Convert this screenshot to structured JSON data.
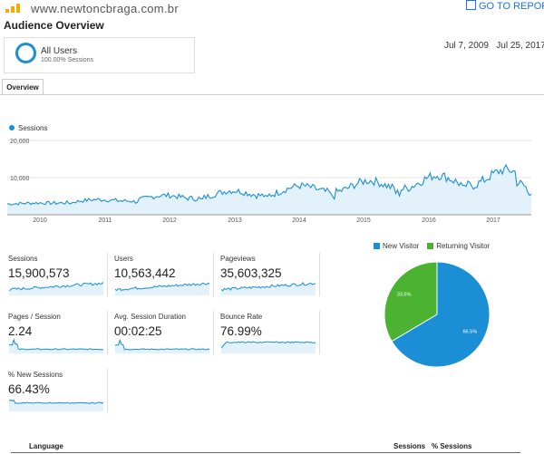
{
  "header": {
    "site": "www.newtoncbraga.com.br",
    "goto_report": "GO TO REPORT",
    "title": "Audience Overview"
  },
  "segment": {
    "name": "All Users",
    "sub": "100.00% Sessions"
  },
  "date_range": {
    "start": "Jul 7, 2009",
    "end": "Jul 25, 2017"
  },
  "tabs": [
    {
      "label": "Overview"
    }
  ],
  "colors": {
    "accent": "#1a8fd6",
    "returning": "#4cb332",
    "fill": "#e3f1fa"
  },
  "sessions_chart": {
    "legend": "Sessions",
    "y_ticks": [
      "20,000",
      "10,000"
    ],
    "x_ticks": [
      "2010",
      "2011",
      "2012",
      "2013",
      "2014",
      "2015",
      "2016",
      "2017"
    ]
  },
  "metrics": [
    {
      "label": "Sessions",
      "value": "15,900,573"
    },
    {
      "label": "Users",
      "value": "10,563,442"
    },
    {
      "label": "Pageviews",
      "value": "35,603,325"
    },
    {
      "label": "Pages / Session",
      "value": "2.24"
    },
    {
      "label": "Avg. Session Duration",
      "value": "00:02:25"
    },
    {
      "label": "Bounce Rate",
      "value": "76.99%"
    },
    {
      "label": "% New Sessions",
      "value": "66.43%"
    }
  ],
  "chart_data": {
    "type": "pie",
    "categories": [
      "New Visitor",
      "Returning Visitor"
    ],
    "values": [
      66.5,
      33.5
    ],
    "labels": [
      "66.5%",
      "33.5%"
    ]
  },
  "table": {
    "headers": {
      "language": "Language",
      "sessions": "Sessions",
      "pct_sessions": "% Sessions"
    }
  }
}
